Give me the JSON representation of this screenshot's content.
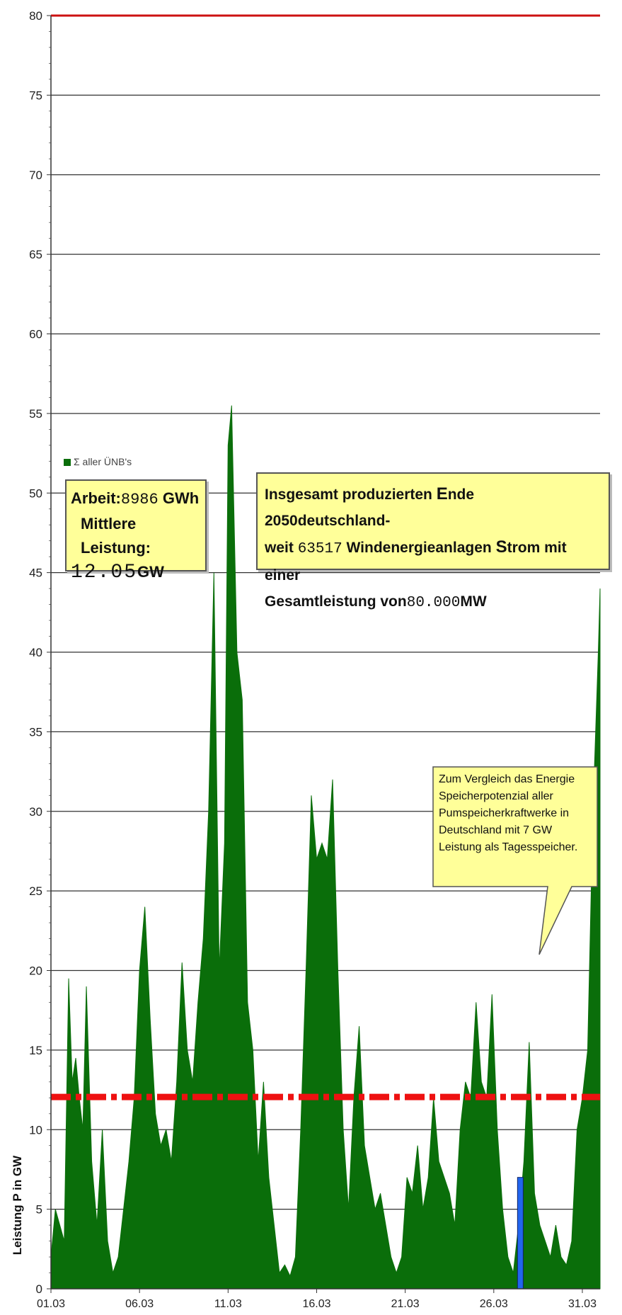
{
  "chart_data": {
    "type": "area",
    "title": "",
    "xlabel": "",
    "ylabel": "Leistung P in GW",
    "ylim": [
      0,
      80
    ],
    "yticks": [
      0,
      5,
      10,
      15,
      20,
      25,
      30,
      35,
      40,
      45,
      50,
      55,
      60,
      65,
      70,
      75,
      80
    ],
    "xlim": [
      1,
      32
    ],
    "xticks": [
      {
        "day": 1,
        "label": "01.03"
      },
      {
        "day": 6,
        "label": "06.03"
      },
      {
        "day": 11,
        "label": "11.03"
      },
      {
        "day": 16,
        "label": "16.03"
      },
      {
        "day": 21,
        "label": "21.03"
      },
      {
        "day": 26,
        "label": "26.03"
      },
      {
        "day": 31,
        "label": "31.03"
      }
    ],
    "grid": true,
    "legend_position": "top-left",
    "series": [
      {
        "name": "Σ aller ÜNB's",
        "color": "#0a6e0a",
        "x": [
          1.0,
          1.25,
          1.5,
          1.75,
          2.0,
          2.2,
          2.4,
          2.6,
          2.8,
          3.0,
          3.3,
          3.6,
          3.9,
          4.2,
          4.5,
          4.8,
          5.1,
          5.4,
          5.7,
          6.0,
          6.3,
          6.6,
          6.9,
          7.2,
          7.5,
          7.8,
          8.1,
          8.4,
          8.7,
          9.0,
          9.3,
          9.6,
          9.9,
          10.2,
          10.5,
          10.8,
          11.0,
          11.2,
          11.5,
          11.8,
          12.1,
          12.4,
          12.7,
          13.0,
          13.3,
          13.6,
          13.9,
          14.2,
          14.5,
          14.8,
          15.1,
          15.4,
          15.7,
          16.0,
          16.3,
          16.6,
          16.9,
          17.2,
          17.5,
          17.8,
          18.1,
          18.4,
          18.7,
          19.0,
          19.3,
          19.6,
          19.9,
          20.2,
          20.5,
          20.8,
          21.1,
          21.4,
          21.7,
          22.0,
          22.3,
          22.6,
          22.9,
          23.2,
          23.5,
          23.8,
          24.1,
          24.4,
          24.7,
          25.0,
          25.3,
          25.6,
          25.9,
          26.2,
          26.5,
          26.8,
          27.1,
          27.4,
          27.7,
          28.0,
          28.3,
          28.6,
          28.9,
          29.2,
          29.5,
          29.8,
          30.1,
          30.4,
          30.7,
          31.0,
          31.3,
          31.6,
          31.9,
          32.0
        ],
        "y": [
          2.0,
          5.0,
          4.0,
          3.0,
          19.5,
          13.0,
          14.5,
          12.0,
          10.0,
          19.0,
          8.0,
          4.0,
          10.0,
          3.0,
          1.0,
          2.0,
          5.0,
          8.0,
          12.0,
          20.0,
          24.0,
          17.0,
          11.0,
          9.0,
          10.0,
          8.0,
          13.0,
          20.5,
          15.0,
          13.0,
          18.0,
          22.0,
          30.0,
          45.0,
          20.0,
          28.0,
          53.0,
          55.5,
          40.0,
          37.0,
          18.0,
          15.0,
          8.0,
          13.0,
          7.0,
          4.0,
          1.0,
          1.5,
          0.8,
          2.0,
          10.0,
          20.0,
          31.0,
          27.0,
          28.0,
          27.0,
          32.0,
          20.0,
          10.0,
          5.0,
          12.0,
          16.5,
          9.0,
          7.0,
          5.0,
          6.0,
          4.0,
          2.0,
          1.0,
          2.0,
          7.0,
          6.0,
          9.0,
          5.0,
          7.0,
          12.0,
          8.0,
          7.0,
          6.0,
          4.0,
          10.0,
          13.0,
          12.0,
          18.0,
          13.0,
          12.0,
          18.5,
          10.0,
          5.0,
          2.0,
          1.0,
          4.0,
          8.0,
          15.5,
          6.0,
          4.0,
          3.0,
          2.0,
          4.0,
          2.0,
          1.5,
          3.0,
          10.0,
          12.0,
          15.0,
          30.0,
          40.0,
          44.0
        ]
      },
      {
        "name": "Mittlere Leistung",
        "type": "line",
        "color": "#ee1111",
        "value": 12.05
      },
      {
        "name": "Gesamtleistung",
        "type": "line",
        "color": "#cc1111",
        "value": 80
      },
      {
        "name": "Pumpspeicherkraftwerke",
        "type": "bar",
        "color": "#2266ee",
        "x": 27.5,
        "value": 7
      }
    ],
    "annotations": {
      "legend_label": "Σ aller ÜNB's",
      "box_left": {
        "line1_label": "Arbeit:",
        "line1_value": "8986",
        "line1_unit": "GWh",
        "line2_label": "Mittlere Leistung:",
        "line3_value": "12.05",
        "line3_unit": "GW"
      },
      "box_right": {
        "t1": "Insgesamt produzierten ",
        "t2": "E",
        "t3": "nde 2050",
        "t4": "deutschland-",
        "t5": "weit ",
        "t6": "63517",
        "t7": " Windenergieanlagen ",
        "t8": "S",
        "t9": "trom mit einer",
        "t10": "Gesamtleistung von",
        "t11": "80.000",
        "t12": "MW"
      },
      "callout": "Zum Vergleich das Energie Speicherpotenzial aller Pumspeicherkraftwerke in Deutschland mit 7 GW Leistung als Tagesspeicher."
    }
  }
}
